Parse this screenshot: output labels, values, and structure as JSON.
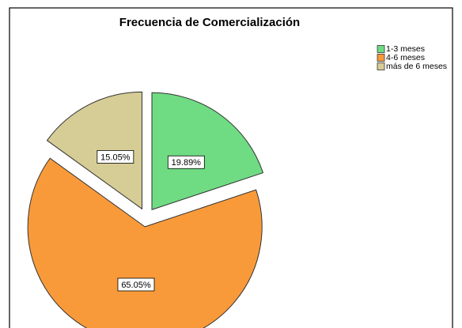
{
  "chart_data": {
    "type": "pie",
    "title": "Frecuencia de Comercialización",
    "categories": [
      "1-3 meses",
      "4-6 meses",
      "más de 6 meses"
    ],
    "values": [
      19.89,
      65.05,
      15.05
    ],
    "value_labels": [
      "19.89%",
      "65.05%",
      "15.05%"
    ],
    "colors": [
      "#6fdc83",
      "#f99a3a",
      "#d6cc96"
    ],
    "legend": "top-right"
  }
}
